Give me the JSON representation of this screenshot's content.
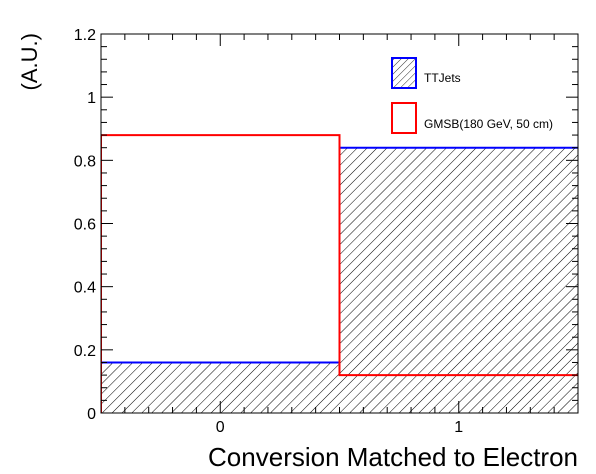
{
  "chart_data": {
    "type": "bar",
    "title": "",
    "xlabel": "Conversion Matched to Electron",
    "ylabel": "(A.U.)",
    "categories": [
      "0",
      "1"
    ],
    "x_bins": [
      [
        -0.5,
        0.5
      ],
      [
        0.5,
        1.5
      ]
    ],
    "xlim": [
      -0.5,
      1.5
    ],
    "ylim": [
      0,
      1.2
    ],
    "x_ticks": [
      "0",
      "1"
    ],
    "y_ticks": [
      "0",
      "0.2",
      "0.4",
      "0.6",
      "0.8",
      "1",
      "1.2"
    ],
    "grid": false,
    "legend_position": "top-right",
    "series": [
      {
        "name": "TTJets",
        "values": [
          0.16,
          0.84
        ],
        "color": "#0000ff",
        "fill": "hatched"
      },
      {
        "name": "GMSB(180 GeV, 50 cm)",
        "values": [
          0.88,
          0.12
        ],
        "color": "#ff0000",
        "fill": "none"
      }
    ]
  }
}
